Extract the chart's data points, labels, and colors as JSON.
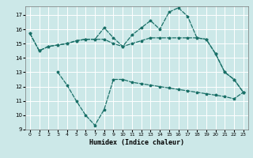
{
  "xlabel": "Humidex (Indice chaleur)",
  "xlim": [
    -0.5,
    23.5
  ],
  "ylim": [
    9,
    17.6
  ],
  "yticks": [
    9,
    10,
    11,
    12,
    13,
    14,
    15,
    16,
    17
  ],
  "xticks": [
    0,
    1,
    2,
    3,
    4,
    5,
    6,
    7,
    8,
    9,
    10,
    11,
    12,
    13,
    14,
    15,
    16,
    17,
    18,
    19,
    20,
    21,
    22,
    23
  ],
  "bg_color": "#cce8e8",
  "grid_color": "#ffffff",
  "line_color": "#1a7068",
  "lines": [
    {
      "x": [
        0,
        1,
        2,
        3,
        4,
        5,
        6,
        7,
        8,
        9,
        10,
        11,
        12,
        13,
        14,
        15,
        16,
        17,
        18,
        19,
        20,
        21,
        22,
        23
      ],
      "y": [
        15.7,
        14.5,
        14.8,
        14.9,
        15.0,
        15.2,
        15.3,
        15.3,
        16.1,
        15.4,
        14.8,
        15.6,
        16.1,
        16.6,
        16.0,
        17.2,
        17.5,
        16.9,
        15.4,
        15.3,
        14.3,
        13.0,
        12.5,
        11.6
      ]
    },
    {
      "x": [
        0,
        1,
        2,
        3,
        4,
        5,
        6,
        7,
        8,
        9,
        10,
        11,
        12,
        13,
        14,
        15,
        16,
        17,
        18,
        19,
        20,
        21,
        22,
        23
      ],
      "y": [
        15.7,
        14.5,
        14.8,
        14.9,
        15.0,
        15.2,
        15.3,
        15.3,
        15.3,
        15.0,
        14.8,
        15.0,
        15.2,
        15.4,
        15.4,
        15.4,
        15.4,
        15.4,
        15.4,
        15.3,
        14.3,
        13.0,
        12.5,
        11.6
      ]
    },
    {
      "x": [
        3,
        4,
        5,
        6,
        7,
        8,
        9,
        10,
        11,
        12,
        13,
        14,
        15,
        16,
        17,
        18,
        19,
        20,
        21,
        22,
        23
      ],
      "y": [
        13.0,
        12.1,
        11.0,
        10.0,
        9.3,
        10.4,
        12.5,
        12.5,
        12.3,
        12.2,
        12.1,
        12.0,
        11.9,
        11.8,
        11.7,
        11.6,
        11.5,
        11.4,
        11.3,
        11.15,
        11.6
      ]
    }
  ]
}
